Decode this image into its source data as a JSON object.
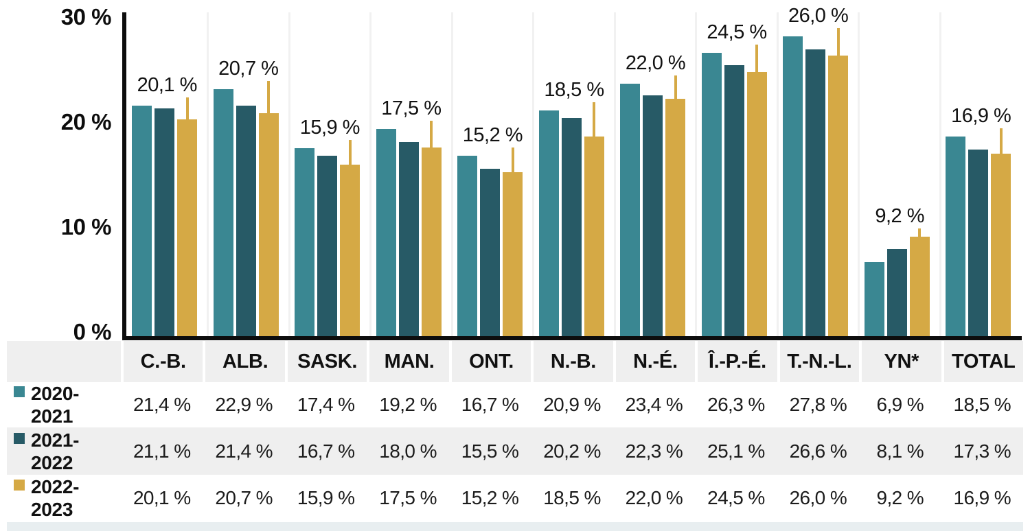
{
  "chart_data": {
    "type": "bar",
    "title": "",
    "xlabel": "",
    "ylabel": "",
    "ylim": [
      0,
      30
    ],
    "grid": "vertical-group-separators",
    "legend_position": "table-left-column",
    "categories": [
      "C.-B.",
      "ALB.",
      "SASK.",
      "MAN.",
      "ONT.",
      "N.-B.",
      "N.-É.",
      "Î.-P.-É.",
      "T.-N.-L.",
      "YN*",
      "TOTAL"
    ],
    "series": [
      {
        "name": "2020-2021",
        "legend_lines": "2020-\n2021",
        "color": "#3a8792",
        "values": [
          21.4,
          22.9,
          17.4,
          19.2,
          16.7,
          20.9,
          23.4,
          26.3,
          27.8,
          6.9,
          18.5
        ],
        "display": [
          "21,4 %",
          "22,9 %",
          "17,4 %",
          "19,2 %",
          "16,7 %",
          "20,9 %",
          "23,4 %",
          "26,3 %",
          "27,8 %",
          "6,9 %",
          "18,5 %"
        ]
      },
      {
        "name": "2021-2022",
        "legend_lines": "2021-\n2022",
        "color": "#275a66",
        "values": [
          21.1,
          21.4,
          16.7,
          18.0,
          15.5,
          20.2,
          22.3,
          25.1,
          26.6,
          8.1,
          17.3
        ],
        "display": [
          "21,1 %",
          "21,4 %",
          "16,7 %",
          "18,0 %",
          "15,5 %",
          "20,2 %",
          "22,3 %",
          "25,1 %",
          "26,6 %",
          "8,1 %",
          "17,3 %"
        ]
      },
      {
        "name": "2022-2023",
        "legend_lines": "2022-\n2023",
        "color": "#d5a945",
        "values": [
          20.1,
          20.7,
          15.9,
          17.5,
          15.2,
          18.5,
          22.0,
          24.5,
          26.0,
          9.2,
          16.9
        ],
        "display": [
          "20,1 %",
          "20,7 %",
          "15,9 %",
          "17,5 %",
          "15,2 %",
          "18,5 %",
          "22,0 %",
          "24,5 %",
          "26,0 %",
          "9,2 %",
          "16,9 %"
        ]
      }
    ],
    "bar_labels": [
      "20,1 %",
      "20,7 %",
      "15,9 %",
      "17,5 %",
      "15,2 %",
      "18,5 %",
      "22,0 %",
      "24,5 %",
      "26,0 %",
      "9,2 %",
      "16,9 %"
    ],
    "bar_labels_series": "2022-2023",
    "yticks": [
      {
        "value": 30,
        "label": "30 %"
      },
      {
        "value": 20,
        "label": "20 %"
      },
      {
        "value": 10,
        "label": "10 %"
      },
      {
        "value": 0,
        "label": "0 %"
      }
    ]
  },
  "table": {
    "headers": [
      "C.-B.",
      "ALB.",
      "SASK.",
      "MAN.",
      "ONT.",
      "N.-B.",
      "N.-É.",
      "Î.-P.-É.",
      "T.-N.-L.",
      "YN*",
      "TOTAL"
    ]
  },
  "colors": {
    "axis": "#0d0d0d",
    "separator": "#f1f1f1",
    "header_bg": "#efefef",
    "row_alt_bg": "#efefef",
    "footer_strip": "#e8eef0"
  }
}
